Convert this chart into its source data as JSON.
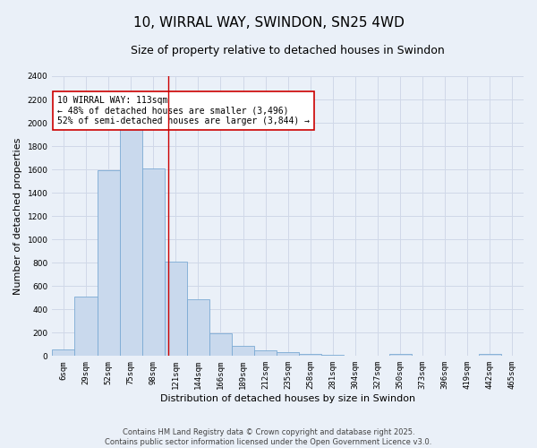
{
  "title": "10, WIRRAL WAY, SWINDON, SN25 4WD",
  "subtitle": "Size of property relative to detached houses in Swindon",
  "xlabel": "Distribution of detached houses by size in Swindon",
  "ylabel": "Number of detached properties",
  "categories": [
    "6sqm",
    "29sqm",
    "52sqm",
    "75sqm",
    "98sqm",
    "121sqm",
    "144sqm",
    "166sqm",
    "189sqm",
    "212sqm",
    "235sqm",
    "258sqm",
    "281sqm",
    "304sqm",
    "327sqm",
    "350sqm",
    "373sqm",
    "396sqm",
    "419sqm",
    "442sqm",
    "465sqm"
  ],
  "values": [
    60,
    510,
    1590,
    1960,
    1610,
    810,
    490,
    195,
    90,
    45,
    30,
    15,
    10,
    0,
    0,
    20,
    0,
    0,
    0,
    20,
    0
  ],
  "bar_color": "#c9d9ed",
  "bar_edge_color": "#7baad4",
  "grid_color": "#d0d8e8",
  "background_color": "#eaf0f8",
  "red_line_x": 4.65,
  "annotation_title": "10 WIRRAL WAY: 113sqm",
  "annotation_line1": "← 48% of detached houses are smaller (3,496)",
  "annotation_line2": "52% of semi-detached houses are larger (3,844) →",
  "annotation_box_color": "#ffffff",
  "annotation_box_edge": "#cc0000",
  "ylim": [
    0,
    2400
  ],
  "yticks": [
    0,
    200,
    400,
    600,
    800,
    1000,
    1200,
    1400,
    1600,
    1800,
    2000,
    2200,
    2400
  ],
  "footer_line1": "Contains HM Land Registry data © Crown copyright and database right 2025.",
  "footer_line2": "Contains public sector information licensed under the Open Government Licence v3.0.",
  "title_fontsize": 11,
  "subtitle_fontsize": 9,
  "axis_label_fontsize": 8,
  "tick_fontsize": 6.5,
  "annotation_fontsize": 7,
  "footer_fontsize": 6
}
